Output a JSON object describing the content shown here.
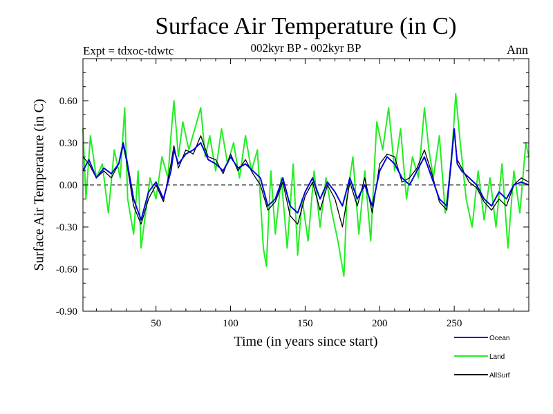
{
  "chart_data": {
    "type": "line",
    "title": "Surface Air Temperature (in C)",
    "subtitle": "002kyr BP - 002kyr BP",
    "expt_label": "Expt = tdxoc-tdwtc",
    "period_label": "Ann",
    "xlabel": "Time (in years since start)",
    "ylabel": "Surface Air Temperature (in C)",
    "xlim": [
      1,
      300
    ],
    "ylim": [
      -0.9,
      0.9
    ],
    "x_ticks": [
      50,
      100,
      150,
      200,
      250
    ],
    "x_tick_labels": [
      "50",
      "100",
      "150",
      "200",
      "250"
    ],
    "y_ticks": [
      -0.9,
      -0.6,
      -0.3,
      0.0,
      0.3,
      0.6
    ],
    "y_tick_labels": [
      "-0.90",
      "-0.60",
      "-0.30",
      "0.00",
      "0.30",
      "0.60"
    ],
    "zero_line": "dashed",
    "legend_position": "below-right",
    "series": [
      {
        "name": "Ocean",
        "color": "#0000dd",
        "x": [
          1,
          5,
          10,
          15,
          20,
          25,
          28,
          30,
          35,
          40,
          45,
          50,
          55,
          60,
          62,
          65,
          70,
          75,
          80,
          85,
          90,
          95,
          100,
          105,
          110,
          115,
          120,
          125,
          130,
          135,
          140,
          145,
          150,
          155,
          160,
          165,
          170,
          175,
          180,
          185,
          190,
          195,
          200,
          205,
          210,
          215,
          220,
          225,
          230,
          235,
          240,
          245,
          250,
          252,
          255,
          260,
          265,
          270,
          275,
          280,
          285,
          290,
          295,
          300
        ],
        "values": [
          0.1,
          0.18,
          0.05,
          0.12,
          0.08,
          0.15,
          0.3,
          0.2,
          -0.1,
          -0.25,
          -0.05,
          0.02,
          -0.1,
          0.1,
          0.25,
          0.15,
          0.22,
          0.25,
          0.3,
          0.18,
          0.15,
          0.1,
          0.2,
          0.12,
          0.15,
          0.1,
          0.05,
          -0.15,
          -0.1,
          0.05,
          -0.15,
          -0.2,
          -0.05,
          0.05,
          -0.1,
          0.02,
          -0.05,
          -0.15,
          0.05,
          -0.1,
          0.0,
          -0.15,
          0.1,
          0.2,
          0.15,
          0.05,
          0.0,
          0.1,
          0.2,
          0.05,
          -0.1,
          -0.15,
          0.4,
          0.15,
          0.1,
          0.05,
          0.0,
          -0.1,
          -0.15,
          -0.05,
          -0.1,
          0.0,
          0.02,
          0.0
        ]
      },
      {
        "name": "Land",
        "color": "#22ee22",
        "x": [
          1,
          3,
          6,
          10,
          14,
          18,
          22,
          26,
          29,
          31,
          35,
          38,
          40,
          43,
          46,
          50,
          54,
          58,
          60,
          62,
          65,
          68,
          72,
          76,
          80,
          83,
          86,
          90,
          94,
          98,
          102,
          106,
          110,
          114,
          118,
          122,
          124,
          127,
          130,
          134,
          138,
          142,
          145,
          148,
          152,
          156,
          160,
          164,
          168,
          172,
          176,
          178,
          182,
          186,
          190,
          194,
          198,
          202,
          206,
          210,
          214,
          218,
          222,
          226,
          230,
          233,
          236,
          240,
          244,
          248,
          251,
          254,
          258,
          262,
          266,
          270,
          274,
          278,
          282,
          286,
          290,
          294,
          298,
          300
        ],
        "values": [
          0.4,
          -0.1,
          0.35,
          0.05,
          0.15,
          -0.2,
          0.25,
          0.05,
          0.55,
          -0.1,
          -0.35,
          0.1,
          -0.45,
          -0.2,
          0.05,
          -0.1,
          0.2,
          0.05,
          0.35,
          0.6,
          0.2,
          0.45,
          0.25,
          0.4,
          0.55,
          0.2,
          0.35,
          0.1,
          0.4,
          0.15,
          0.3,
          0.05,
          0.35,
          0.1,
          0.25,
          -0.45,
          -0.58,
          0.1,
          -0.35,
          0.05,
          -0.45,
          0.15,
          -0.5,
          -0.1,
          -0.4,
          0.1,
          -0.3,
          0.05,
          -0.2,
          -0.4,
          -0.65,
          -0.1,
          0.2,
          -0.35,
          0.1,
          -0.4,
          0.45,
          0.25,
          0.55,
          0.1,
          0.4,
          -0.1,
          0.2,
          0.05,
          0.55,
          0.25,
          0.05,
          0.35,
          -0.2,
          0.15,
          0.65,
          0.3,
          -0.1,
          -0.3,
          0.1,
          -0.25,
          0.05,
          -0.3,
          0.15,
          -0.45,
          0.1,
          -0.2,
          0.3,
          0.2
        ]
      },
      {
        "name": "AllSurf",
        "color": "#000000",
        "x": [
          1,
          5,
          10,
          15,
          20,
          25,
          28,
          30,
          35,
          40,
          45,
          50,
          55,
          60,
          62,
          65,
          70,
          75,
          80,
          85,
          90,
          95,
          100,
          105,
          110,
          115,
          120,
          125,
          130,
          135,
          140,
          145,
          150,
          155,
          160,
          165,
          170,
          175,
          180,
          185,
          190,
          195,
          200,
          205,
          210,
          215,
          220,
          225,
          230,
          235,
          240,
          245,
          250,
          252,
          255,
          260,
          265,
          270,
          275,
          280,
          285,
          290,
          295,
          300
        ],
        "values": [
          0.2,
          0.15,
          0.05,
          0.1,
          0.05,
          0.15,
          0.28,
          0.18,
          -0.15,
          -0.28,
          -0.1,
          0.0,
          -0.12,
          0.15,
          0.28,
          0.12,
          0.25,
          0.22,
          0.35,
          0.2,
          0.18,
          0.08,
          0.22,
          0.1,
          0.18,
          0.08,
          0.0,
          -0.18,
          -0.12,
          0.02,
          -0.22,
          -0.28,
          -0.08,
          0.02,
          -0.18,
          0.0,
          -0.1,
          -0.3,
          0.02,
          -0.15,
          0.05,
          -0.2,
          0.15,
          0.22,
          0.2,
          0.02,
          0.05,
          0.12,
          0.25,
          0.08,
          -0.12,
          -0.18,
          0.38,
          0.18,
          0.12,
          0.02,
          -0.02,
          -0.12,
          -0.18,
          -0.1,
          -0.15,
          0.0,
          0.05,
          0.02
        ]
      }
    ]
  }
}
